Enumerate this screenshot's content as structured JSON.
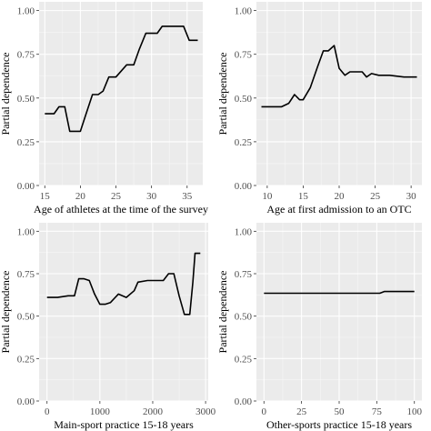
{
  "chart_data": [
    {
      "type": "line",
      "xlabel": "Age of athletes at the time of the survey",
      "ylabel": "Partial dependence",
      "xlim": [
        14.2,
        37.2
      ],
      "ylim": [
        0.0,
        1.05
      ],
      "xticks": [
        15,
        20,
        25,
        30,
        35
      ],
      "yticks": [
        0.0,
        0.25,
        0.5,
        0.75,
        1.0
      ],
      "ytick_labels": [
        "0.00",
        "0.25",
        "0.50",
        "0.75",
        "1.00"
      ],
      "grid": true,
      "x": [
        15,
        16.3,
        17,
        17.8,
        18.5,
        19.2,
        20,
        20.8,
        21.7,
        22.5,
        23.2,
        24,
        25,
        26.5,
        27.5,
        28.3,
        29.2,
        30,
        30.8,
        31.5,
        33,
        34.5,
        35.3,
        36.5
      ],
      "y": [
        0.41,
        0.41,
        0.45,
        0.45,
        0.31,
        0.31,
        0.31,
        0.41,
        0.52,
        0.52,
        0.54,
        0.62,
        0.62,
        0.69,
        0.69,
        0.78,
        0.87,
        0.87,
        0.87,
        0.91,
        0.91,
        0.91,
        0.83,
        0.83
      ]
    },
    {
      "type": "line",
      "xlabel": "Age at first admission to an OTC",
      "ylabel": "Partial dependence",
      "xlim": [
        8.5,
        31.5
      ],
      "ylim": [
        0.0,
        1.05
      ],
      "xticks": [
        10,
        15,
        20,
        25,
        30
      ],
      "yticks": [
        0.0,
        0.25,
        0.5,
        0.75,
        1.0
      ],
      "ytick_labels": [
        "0.00",
        "0.25",
        "0.50",
        "0.75",
        "1.00"
      ],
      "grid": true,
      "x": [
        9.2,
        10,
        11,
        12,
        13,
        13.8,
        14.5,
        15,
        16,
        17,
        17.8,
        18.5,
        19.3,
        20,
        20.8,
        21.5,
        22.3,
        23.2,
        23.8,
        24.5,
        25.5,
        27,
        29,
        30.8
      ],
      "y": [
        0.45,
        0.45,
        0.45,
        0.45,
        0.47,
        0.52,
        0.49,
        0.49,
        0.56,
        0.68,
        0.77,
        0.77,
        0.8,
        0.67,
        0.63,
        0.65,
        0.65,
        0.65,
        0.62,
        0.64,
        0.63,
        0.63,
        0.62,
        0.62
      ]
    },
    {
      "type": "line",
      "xlabel": "Main-sport practice 15-18 years",
      "ylabel": "Partial dependence",
      "xlim": [
        -150,
        3050
      ],
      "ylim": [
        0.0,
        1.05
      ],
      "xticks": [
        0,
        1000,
        2000,
        3000
      ],
      "yticks": [
        0.0,
        0.25,
        0.5,
        0.75,
        1.0
      ],
      "ytick_labels": [
        "0.00",
        "0.25",
        "0.50",
        "0.75",
        "1.00"
      ],
      "grid": true,
      "x": [
        0,
        200,
        400,
        520,
        600,
        700,
        800,
        900,
        1000,
        1100,
        1200,
        1350,
        1500,
        1650,
        1720,
        1900,
        2100,
        2200,
        2300,
        2400,
        2500,
        2600,
        2700,
        2760,
        2800,
        2900
      ],
      "y": [
        0.61,
        0.61,
        0.62,
        0.62,
        0.72,
        0.72,
        0.71,
        0.63,
        0.57,
        0.57,
        0.58,
        0.63,
        0.61,
        0.65,
        0.7,
        0.71,
        0.71,
        0.71,
        0.75,
        0.75,
        0.62,
        0.51,
        0.51,
        0.7,
        0.87,
        0.87
      ]
    },
    {
      "type": "line",
      "xlabel": "Other-sports practice 15-18 years",
      "ylabel": "Partial dependence",
      "xlim": [
        -5,
        105
      ],
      "ylim": [
        0.0,
        1.05
      ],
      "xticks": [
        0,
        25,
        50,
        75,
        100
      ],
      "yticks": [
        0.0,
        0.25,
        0.5,
        0.75,
        1.0
      ],
      "ytick_labels": [
        "0.00",
        "0.25",
        "0.50",
        "0.75",
        "1.00"
      ],
      "grid": true,
      "x": [
        0,
        40,
        77,
        80,
        100
      ],
      "y": [
        0.635,
        0.635,
        0.635,
        0.645,
        0.645
      ]
    }
  ]
}
